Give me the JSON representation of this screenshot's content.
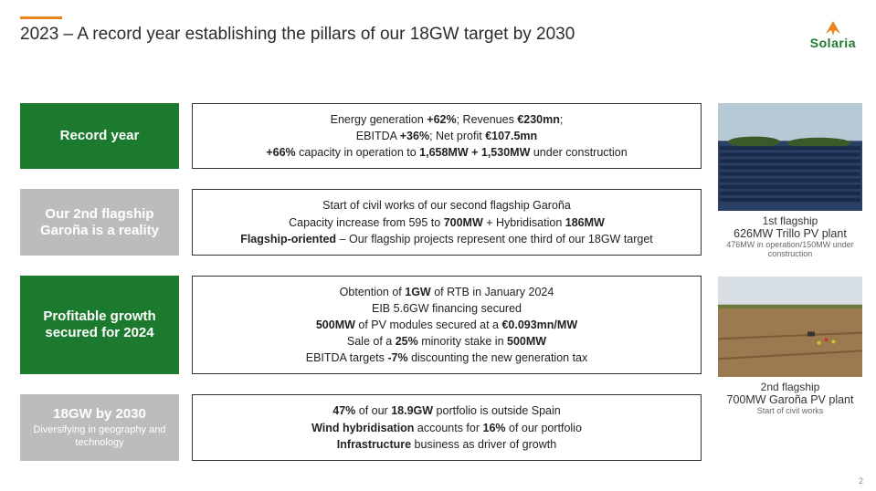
{
  "colors": {
    "accent_orange": "#e9841f",
    "brand_green": "#1b7a2d",
    "label_gray": "#bcbcbc",
    "border": "#333333",
    "text": "#2b2b2b"
  },
  "header": {
    "title": "2023 – A record year establishing the pillars of our 18GW target by 2030",
    "logo_text": "Solaria"
  },
  "rows": [
    {
      "label_style": "green",
      "label_title": "Record year",
      "label_sub": "",
      "lines": [
        "Energy generation <b>+62%</b>; Revenues <b>€230mn</b>;",
        "EBITDA <b>+36%</b>; Net profit <b>€107.5mn</b>",
        "<b>+66%</b> capacity in operation to <b>1,658MW + 1,530MW</b> under construction"
      ]
    },
    {
      "label_style": "gray",
      "label_title": "Our 2nd flagship Garoña is a reality",
      "label_sub": "",
      "lines": [
        "Start of civil works of our second flagship Garoña",
        "Capacity increase from 595 to <b>700MW</b> + Hybridisation <b>186MW</b>",
        "<b>Flagship-oriented</b> – Our flagship projects represent one third of our 18GW target"
      ]
    },
    {
      "label_style": "green",
      "label_title": "Profitable growth secured for 2024",
      "label_sub": "",
      "lines": [
        "Obtention of <b>1GW</b> of RTB in January 2024",
        "EIB 5.6GW financing secured",
        "<b>500MW</b> of PV modules secured at a <b>€0.093mn/MW</b>",
        "Sale of a <b>25%</b> minority stake in <b>500MW</b>",
        "EBITDA targets <b>-7%</b> discounting the new generation tax"
      ]
    },
    {
      "label_style": "gray",
      "label_title": "18GW by 2030",
      "label_sub": "Diversifying in geography and technology",
      "lines": [
        "<b>47%</b> of our <b>18.9GW</b> portfolio is outside Spain",
        "<b>Wind hybridisation</b> accounts for <b>16%</b> of our portfolio",
        "<b>Infrastructure</b> business as driver of growth"
      ]
    }
  ],
  "photos": [
    {
      "caption_title": "1st flagship",
      "caption_main": "626MW Trillo PV plant",
      "caption_sub": "476MW in operation/150MW under construction",
      "height": 118,
      "type": "solar-field"
    },
    {
      "caption_title": "2nd flagship",
      "caption_main": "700MW Garoña PV plant",
      "caption_sub": "Start of civil works",
      "height": 110,
      "type": "earthworks"
    }
  ],
  "page_number": "2"
}
